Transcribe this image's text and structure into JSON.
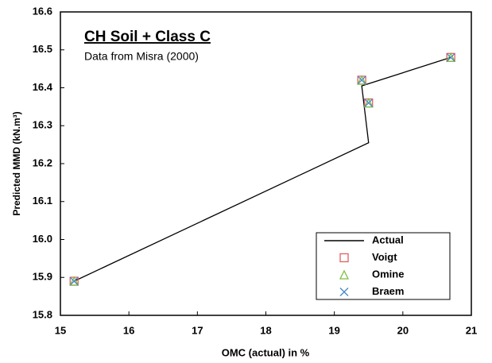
{
  "chart_data": {
    "type": "scatter",
    "annotations": [
      "CH Soil + Class C",
      "Data from Misra (2000)"
    ],
    "x_label": "OMC (actual) in %",
    "y_label": "Predicted MMD (kN.m³)",
    "xlim": [
      15,
      21
    ],
    "xticks": [
      15,
      16,
      17,
      18,
      19,
      20,
      21
    ],
    "ylim": [
      15.8,
      16.6
    ],
    "yticks": [
      15.8,
      15.9,
      {
        "value": 16,
        "label": "16.0"
      },
      16.1,
      16.2,
      16.3,
      16.4,
      16.5,
      16.6
    ],
    "legend": "bottom-right",
    "series": [
      {
        "name": "Actual",
        "color": "#000000",
        "style": "line",
        "x": [
          15.2,
          19.5,
          19.4,
          20.7
        ],
        "values": [
          15.89,
          16.255,
          16.405,
          16.48
        ]
      },
      {
        "name": "Voigt",
        "color": "#e06060",
        "style": "square",
        "x": [
          15.2,
          19.4,
          19.5,
          20.7
        ],
        "values": [
          15.89,
          16.42,
          16.36,
          16.48
        ]
      },
      {
        "name": "Omine",
        "color": "#7fbf3f",
        "style": "triangle",
        "x": [
          15.2,
          19.4,
          19.5,
          20.7
        ],
        "values": [
          15.89,
          16.42,
          16.36,
          16.48
        ]
      },
      {
        "name": "Braem",
        "color": "#4a86c8",
        "style": "x",
        "x": [
          15.2,
          19.4,
          19.5,
          20.7
        ],
        "values": [
          15.89,
          16.42,
          16.36,
          16.48
        ]
      }
    ]
  }
}
